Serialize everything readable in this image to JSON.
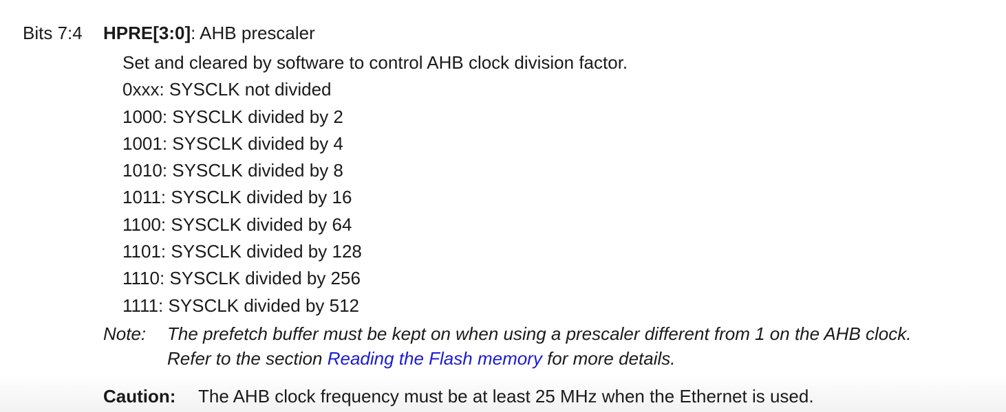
{
  "register": {
    "bits": "Bits 7:4",
    "field_name": "HPRE[3:0]",
    "field_sep": ":",
    "field_desc": "AHB prescaler"
  },
  "description": [
    "Set and cleared by software to control AHB clock division factor.",
    "0xxx: SYSCLK not divided",
    "1000: SYSCLK divided by 2",
    "1001: SYSCLK divided by 4",
    "1010: SYSCLK divided by 8",
    "1011: SYSCLK divided by 16",
    "1100: SYSCLK divided by 64",
    "1101: SYSCLK divided by 128",
    "1110: SYSCLK divided by 256",
    "1111: SYSCLK divided by 512"
  ],
  "note": {
    "label": "Note:",
    "line1": "The prefetch buffer must be kept on when using a prescaler different from 1 on the AHB clock.",
    "line2_before": "Refer to the section",
    "link_text": "Reading the Flash memory",
    "line2_after": "for more details."
  },
  "caution": {
    "label": "Caution:",
    "text": "The AHB clock frequency must be at least 25 MHz when the Ethernet is used."
  }
}
